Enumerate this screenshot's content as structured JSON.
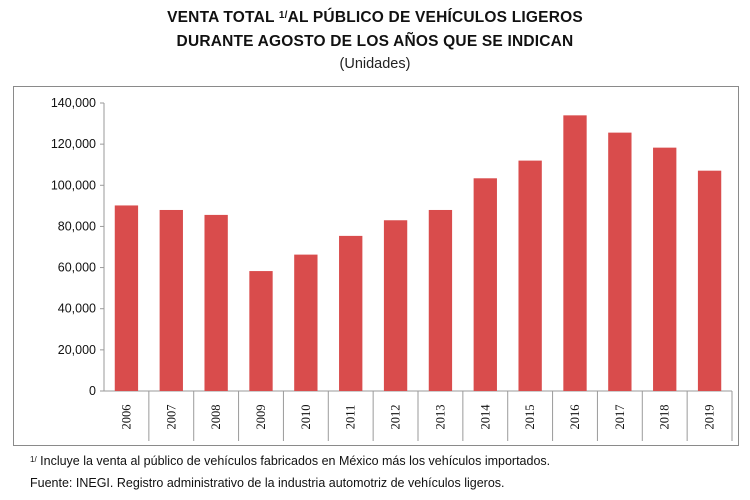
{
  "header": {
    "title_line1_pre": "VENTA TOTAL ",
    "title_line1_sup": "1/",
    "title_line1_post": "AL PÚBLICO DE VEHÍCULOS LIGEROS",
    "title_line2": "DURANTE AGOSTO DE LOS AÑOS QUE SE INDICAN",
    "subtitle": "(Unidades)"
  },
  "footnotes": {
    "note_sup": "1/",
    "note_text": " Incluye la venta al público de vehículos fabricados en México más los vehículos importados.",
    "source": "Fuente: INEGI. Registro administrativo de la industria automotriz de vehículos ligeros."
  },
  "chart_data": {
    "type": "bar",
    "title": "VENTA TOTAL 1/AL PÚBLICO DE VEHÍCULOS LIGEROS DURANTE AGOSTO DE LOS AÑOS QUE SE INDICAN",
    "subtitle": "(Unidades)",
    "xlabel": "",
    "ylabel": "",
    "categories": [
      "2006",
      "2007",
      "2008",
      "2009",
      "2010",
      "2011",
      "2012",
      "2013",
      "2014",
      "2015",
      "2016",
      "2017",
      "2018",
      "2019"
    ],
    "values": [
      90200,
      88000,
      85600,
      58300,
      66300,
      75400,
      83000,
      88000,
      103400,
      112000,
      134000,
      125600,
      118300,
      107100
    ],
    "ylim": [
      0,
      140000
    ],
    "yticks": [
      0,
      20000,
      40000,
      60000,
      80000,
      100000,
      120000,
      140000
    ],
    "ytick_labels": [
      "0",
      "20,000",
      "40,000",
      "60,000",
      "80,000",
      "100,000",
      "120,000",
      "140,000"
    ],
    "bar_color": "#d94c4c",
    "grid": false,
    "legend": "none"
  }
}
